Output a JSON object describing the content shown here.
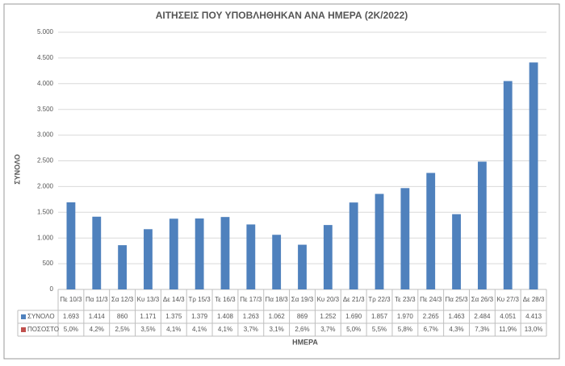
{
  "chart_data": {
    "type": "bar",
    "title": "ΑΙΤΗΣΕΙΣ ΠΟΥ ΥΠΟΒΛΗΘΗΚΑΝ ΑΝΑ ΗΜΕΡΑ (2Κ/2022)",
    "y_label": "ΣΥΝΟΛΟ",
    "x_label": "ΗΜΕΡΑ",
    "categories": [
      "Πε 10/3",
      "Πα 11/3",
      "Σα 12/3",
      "Κυ 13/3",
      "Δε 14/3",
      "Τρ 15/3",
      "Τε 16/3",
      "Πε 17/3",
      "Πα 18/3",
      "Σα 19/3",
      "Κυ 20/3",
      "Δε 21/3",
      "Τρ 22/3",
      "Τε 23/3",
      "Πε 24/3",
      "Πα 25/3",
      "Σα 26/3",
      "Κυ 27/3",
      "Δε 28/3"
    ],
    "series": [
      {
        "name": "ΣΥΝΟΛΟ",
        "color": "#4f81bd",
        "plotted": true,
        "values": [
          1693,
          1414,
          860,
          1171,
          1375,
          1379,
          1408,
          1263,
          1062,
          869,
          1252,
          1690,
          1857,
          1970,
          2265,
          1463,
          2484,
          4051,
          4413
        ],
        "value_labels": [
          "1.693",
          "1.414",
          "860",
          "1.171",
          "1.375",
          "1.379",
          "1.408",
          "1.263",
          "1.062",
          "869",
          "1.252",
          "1.690",
          "1.857",
          "1.970",
          "2.265",
          "1.463",
          "2.484",
          "4.051",
          "4.413"
        ]
      },
      {
        "name": "ΠΟΣΟΣΤΟ",
        "color": "#c0504d",
        "plotted": false,
        "values": [
          5.0,
          4.2,
          2.5,
          3.5,
          4.1,
          4.1,
          4.1,
          3.7,
          3.1,
          2.6,
          3.7,
          5.0,
          5.5,
          5.8,
          6.7,
          4.3,
          7.3,
          11.9,
          13.0
        ],
        "value_labels": [
          "5,0%",
          "4,2%",
          "2,5%",
          "3,5%",
          "4,1%",
          "4,1%",
          "4,1%",
          "3,7%",
          "3,1%",
          "2,6%",
          "3,7%",
          "5,0%",
          "5,5%",
          "5,8%",
          "6,7%",
          "4,3%",
          "7,3%",
          "11,9%",
          "13,0%"
        ]
      }
    ],
    "ylim": [
      0,
      5000
    ],
    "yticks": [
      {
        "value": 0,
        "label": "0"
      },
      {
        "value": 500,
        "label": "500"
      },
      {
        "value": 1000,
        "label": "1.000"
      },
      {
        "value": 1500,
        "label": "1.500"
      },
      {
        "value": 2000,
        "label": "2.000"
      },
      {
        "value": 2500,
        "label": "2.500"
      },
      {
        "value": 3000,
        "label": "3.000"
      },
      {
        "value": 3500,
        "label": "3.500"
      },
      {
        "value": 4000,
        "label": "4.000"
      },
      {
        "value": 4500,
        "label": "4.500"
      },
      {
        "value": 5000,
        "label": "5.000"
      }
    ],
    "grid": true
  }
}
